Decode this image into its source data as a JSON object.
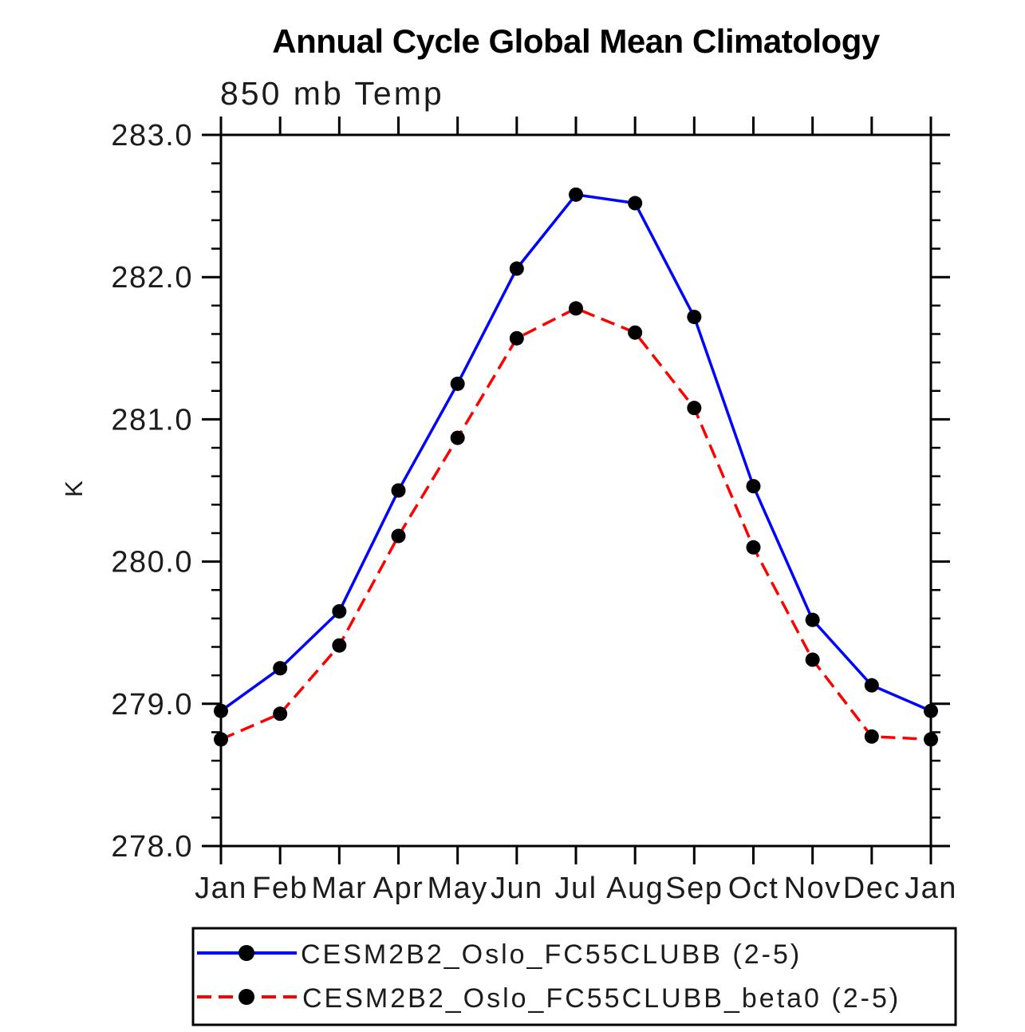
{
  "chart_data": {
    "type": "line",
    "title": "Annual Cycle Global Mean Climatology",
    "subtitle": "850 mb Temp",
    "ylabel": "K",
    "x_ticklabels": [
      "Jan",
      "Feb",
      "Mar",
      "Apr",
      "May",
      "Jun",
      "Jul",
      "Aug",
      "Sep",
      "Oct",
      "Nov",
      "Dec",
      "Jan"
    ],
    "ylim": [
      278.0,
      283.0
    ],
    "y_major_step": 1.0,
    "y_minor_step": 0.2,
    "y_tick_decimals": 1,
    "grid": false,
    "legend_position": "bottom",
    "axis_color": "#000000",
    "background_color": "#ffffff",
    "series": [
      {
        "name": "CESM2B2_Oslo_FC55CLUBB (2-5)",
        "color": "#0000ff",
        "line_style": "solid",
        "marker": "filled-circle",
        "marker_color": "#000000",
        "values": [
          278.95,
          279.25,
          279.65,
          280.5,
          281.25,
          282.06,
          282.58,
          282.52,
          281.72,
          280.53,
          279.59,
          279.13,
          278.95
        ]
      },
      {
        "name": "CESM2B2_Oslo_FC55CLUBB_beta0 (2-5)",
        "color": "#ff0000",
        "line_style": "dashed",
        "marker": "filled-circle",
        "marker_color": "#000000",
        "values": [
          278.75,
          278.93,
          279.41,
          280.18,
          280.87,
          281.57,
          281.78,
          281.61,
          281.08,
          280.1,
          279.31,
          278.77,
          278.75
        ]
      }
    ]
  }
}
